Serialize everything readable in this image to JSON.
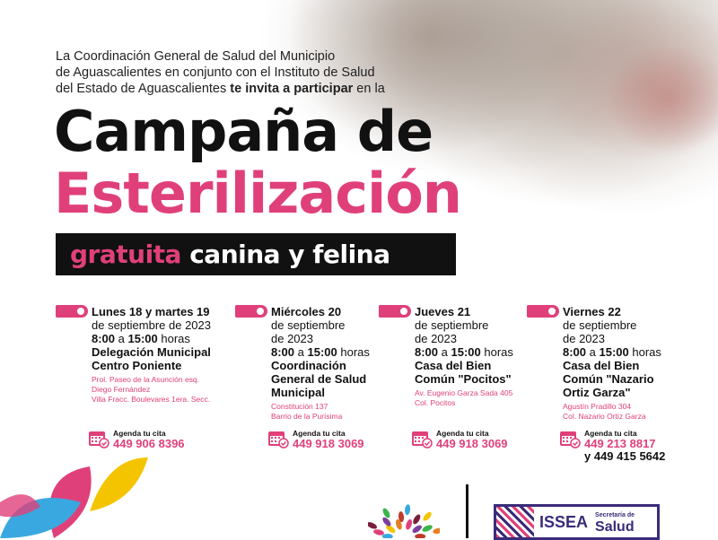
{
  "intro": {
    "line1": "La Coordinación General de Salud del Municipio",
    "line2": "de Aguascalientes en conjunto con el Instituto de Salud",
    "line3_pre": "del Estado de Aguascalientes ",
    "line3_bold": "te invita a participar",
    "line3_post": " en la"
  },
  "title": {
    "line1": "Campaña de",
    "line2": "Esterilización",
    "bar_pink": "gratuita",
    "bar_white": " canina y felina"
  },
  "colors": {
    "accent": "#e0407a",
    "dark": "#111111",
    "logo_purple": "#3b2b7a"
  },
  "agenda_label": "Agenda tu cita",
  "events": [
    {
      "day": "Lunes 18 y martes 19",
      "date": [
        "de septiembre de 2023"
      ],
      "start": "8:00",
      "a": " a ",
      "end": "15:00",
      "horas": " horas",
      "place": [
        "Delegación Municipal",
        "Centro Poniente"
      ],
      "address": [
        "Prol. Paseo de la Asunción esq.",
        "Diego Fernández",
        "Villa Fracc. Boulevares 1era. Secc."
      ],
      "phone": "449 906 8396"
    },
    {
      "day": "Miércoles 20",
      "date": [
        "de septiembre",
        "de 2023"
      ],
      "start": "8:00",
      "a": " a ",
      "end": "15:00",
      "horas": " horas",
      "place": [
        "Coordinación",
        "General de Salud",
        "Municipal"
      ],
      "address": [
        "Constitución 137",
        "Barrio de la Purísima"
      ],
      "phone": "449 918 3069"
    },
    {
      "day": "Jueves 21",
      "date": [
        "de septiembre",
        "de 2023"
      ],
      "start": "8:00",
      "a": " a ",
      "end": "15:00",
      "horas": " horas",
      "place": [
        "Casa del Bien",
        "Común \"Pocitos\""
      ],
      "address": [
        "Av. Eugenio Garza Sada 405",
        "Col. Pocitos"
      ],
      "phone": "449 918 3069"
    },
    {
      "day": "Viernes 22",
      "date": [
        "de septiembre",
        "de 2023"
      ],
      "start": "8:00",
      "a": " a ",
      "end": "15:00",
      "horas": " horas",
      "place": [
        "Casa del Bien",
        "Común \"Nazario",
        "Ortiz Garza\""
      ],
      "address": [
        "Agustín Pradillo 304",
        "Col. Nazario Ortiz Garza"
      ],
      "phone": "449 213 8817",
      "phone2": "y 449 415 5642"
    }
  ],
  "logos": {
    "issea": "ISSEA",
    "secretaria": "Secretaría de",
    "salud": "Salud"
  }
}
